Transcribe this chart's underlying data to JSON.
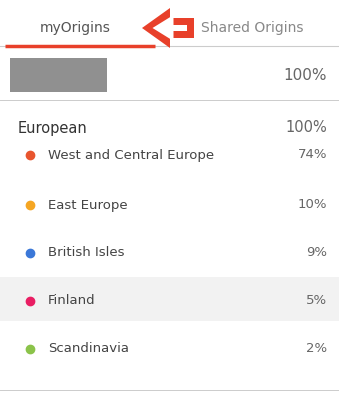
{
  "tab_myorigins": "myOrigins",
  "tab_shared": "Shared Origins",
  "tab_underline_color": "#e8402a",
  "tab_text_color": "#888888",
  "tab_active_color": "#555555",
  "header_line_color": "#cccccc",
  "arrow_color": "#e8402a",
  "bar_color": "#909090",
  "top_label": "100%",
  "top_label_color": "#666666",
  "section_label": "European",
  "section_value": "100%",
  "section_text_color": "#333333",
  "rows": [
    {
      "label": "West and Central Europe",
      "value": "74%",
      "dot_color": "#e8552e",
      "highlight": false
    },
    {
      "label": "East Europe",
      "value": "10%",
      "dot_color": "#f5a623",
      "highlight": false
    },
    {
      "label": "British Isles",
      "value": "9%",
      "dot_color": "#3b78d8",
      "highlight": false
    },
    {
      "label": "Finland",
      "value": "5%",
      "dot_color": "#e91e63",
      "highlight": true
    },
    {
      "label": "Scandinavia",
      "value": "2%",
      "dot_color": "#8bc34a",
      "highlight": false
    }
  ],
  "highlight_color": "#f2f2f2",
  "row_text_color": "#444444",
  "value_text_color": "#666666",
  "bg_color": "#ffffff",
  "fig_width": 3.39,
  "fig_height": 3.98,
  "dpi": 100
}
